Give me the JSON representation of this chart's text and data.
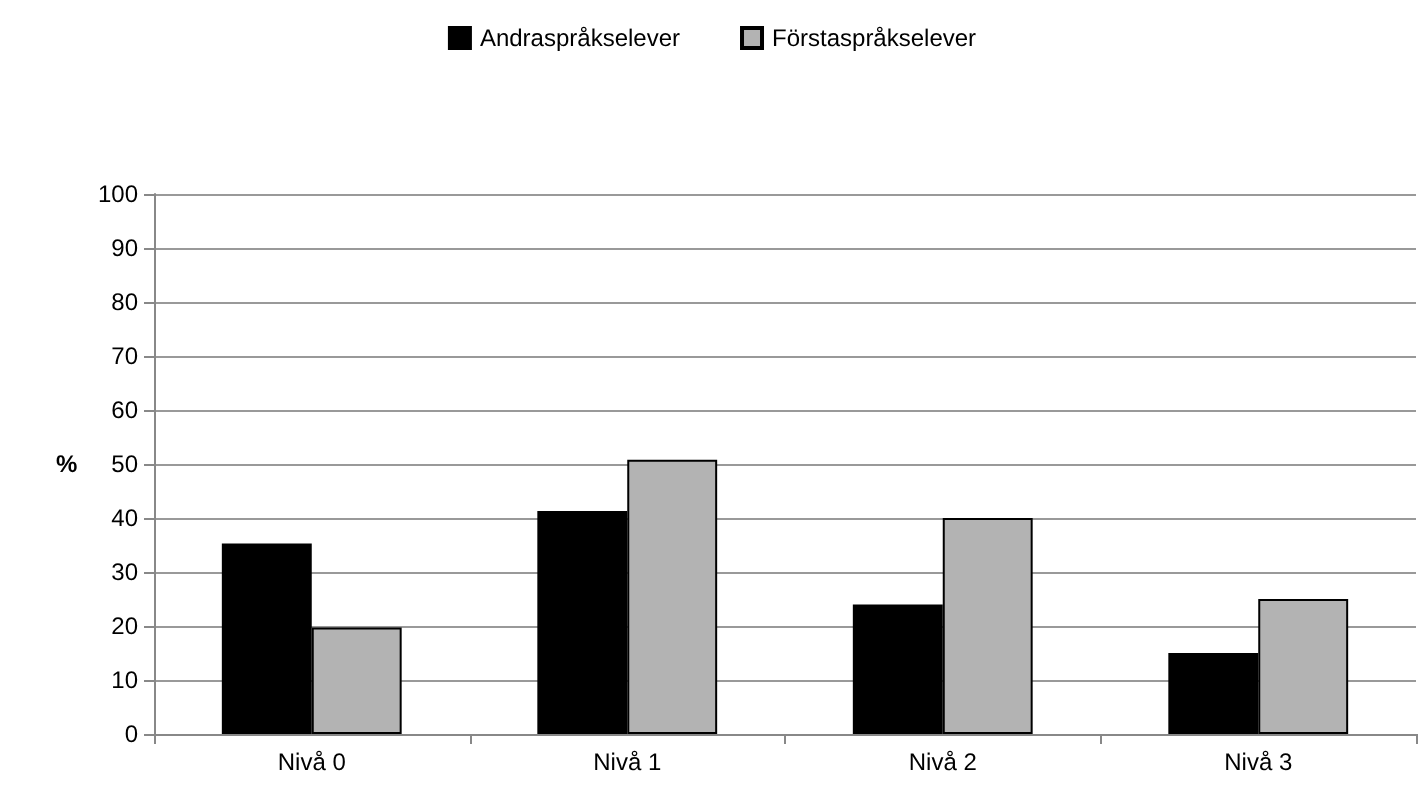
{
  "chart_data": {
    "type": "bar",
    "ylabel": "%",
    "categories": [
      "Nivå 0",
      "Nivå 1",
      "Nivå 2",
      "Nivå 3"
    ],
    "series": [
      {
        "name": "Andraspråkselever",
        "color": "#000000",
        "values": [
          35.3,
          41.3,
          24,
          15
        ]
      },
      {
        "name": "Förstaspråkselever",
        "color": "#b3b3b3",
        "values": [
          19.7,
          50.8,
          40,
          25
        ]
      }
    ],
    "ylim": [
      0,
      100
    ],
    "yticks": [
      0,
      10,
      20,
      30,
      40,
      50,
      60,
      70,
      80,
      90,
      100
    ],
    "grid": "y",
    "legend": "top"
  }
}
